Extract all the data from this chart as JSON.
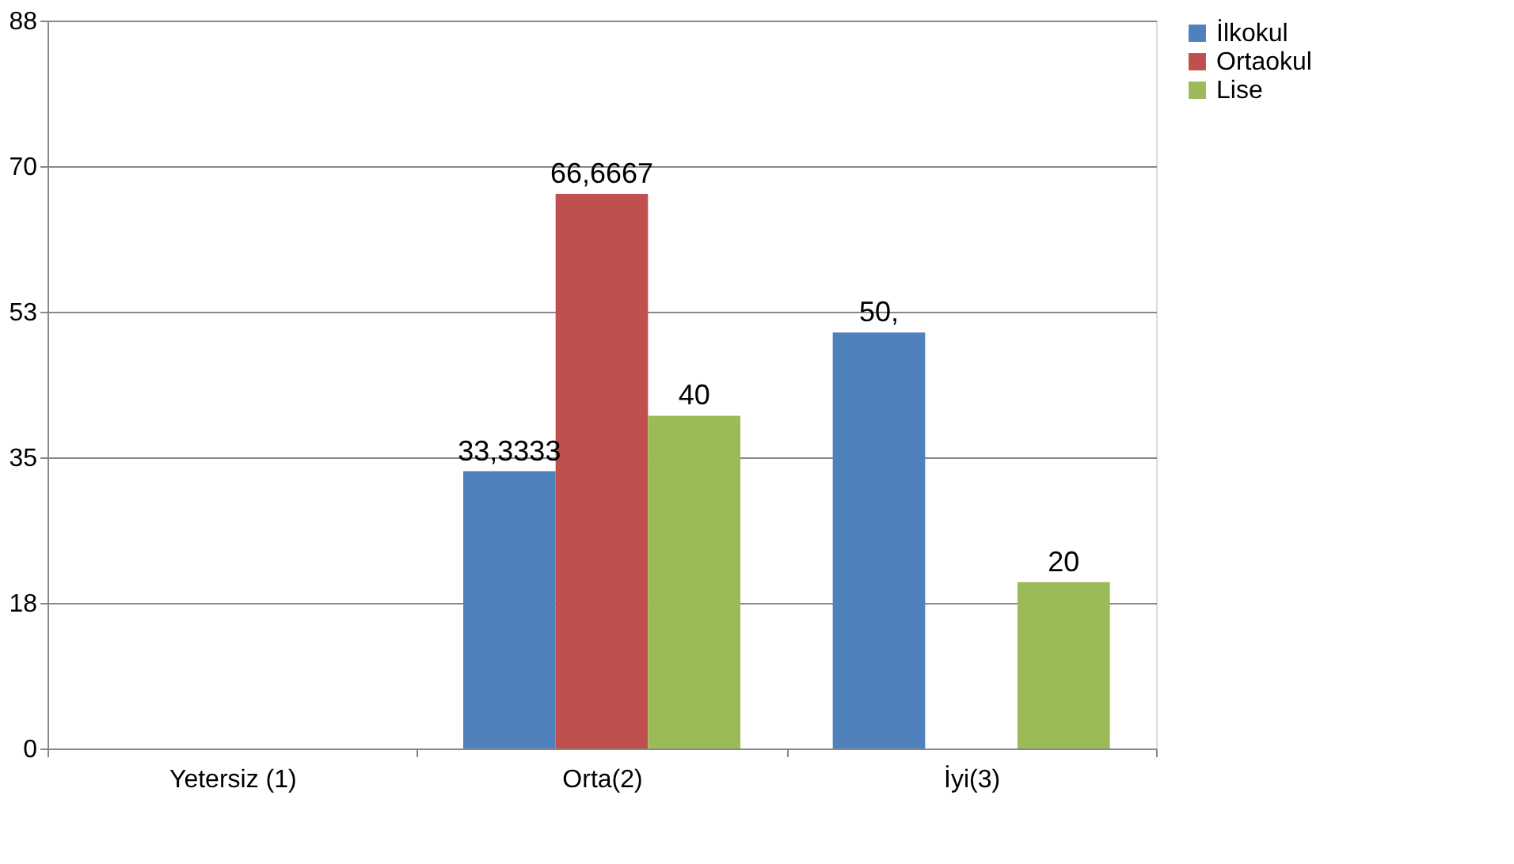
{
  "chart_data": {
    "type": "bar",
    "categories": [
      "Yetersiz (1)",
      "Orta(2)",
      "İyi(3)"
    ],
    "series": [
      {
        "name": "İlkokul",
        "color": "#4f81bd",
        "values": [
          null,
          33.3333,
          50
        ],
        "value_labels": [
          null,
          "33,3333",
          "50,"
        ]
      },
      {
        "name": "Ortaokul",
        "color": "#c0504d",
        "values": [
          null,
          66.6667,
          null
        ],
        "value_labels": [
          null,
          "66,6667",
          null
        ]
      },
      {
        "name": "Lise",
        "color": "#9bbb59",
        "values": [
          null,
          40,
          20
        ],
        "value_labels": [
          null,
          "40",
          "20"
        ]
      }
    ],
    "ylim": [
      0,
      87.5
    ],
    "yticks": [
      0,
      {
        "value": 17.5,
        "label": "18"
      },
      35,
      {
        "value": 52.5,
        "label": "53"
      },
      70,
      {
        "value": 87.5,
        "label": "88"
      }
    ],
    "grid": "y",
    "legend": "right"
  }
}
